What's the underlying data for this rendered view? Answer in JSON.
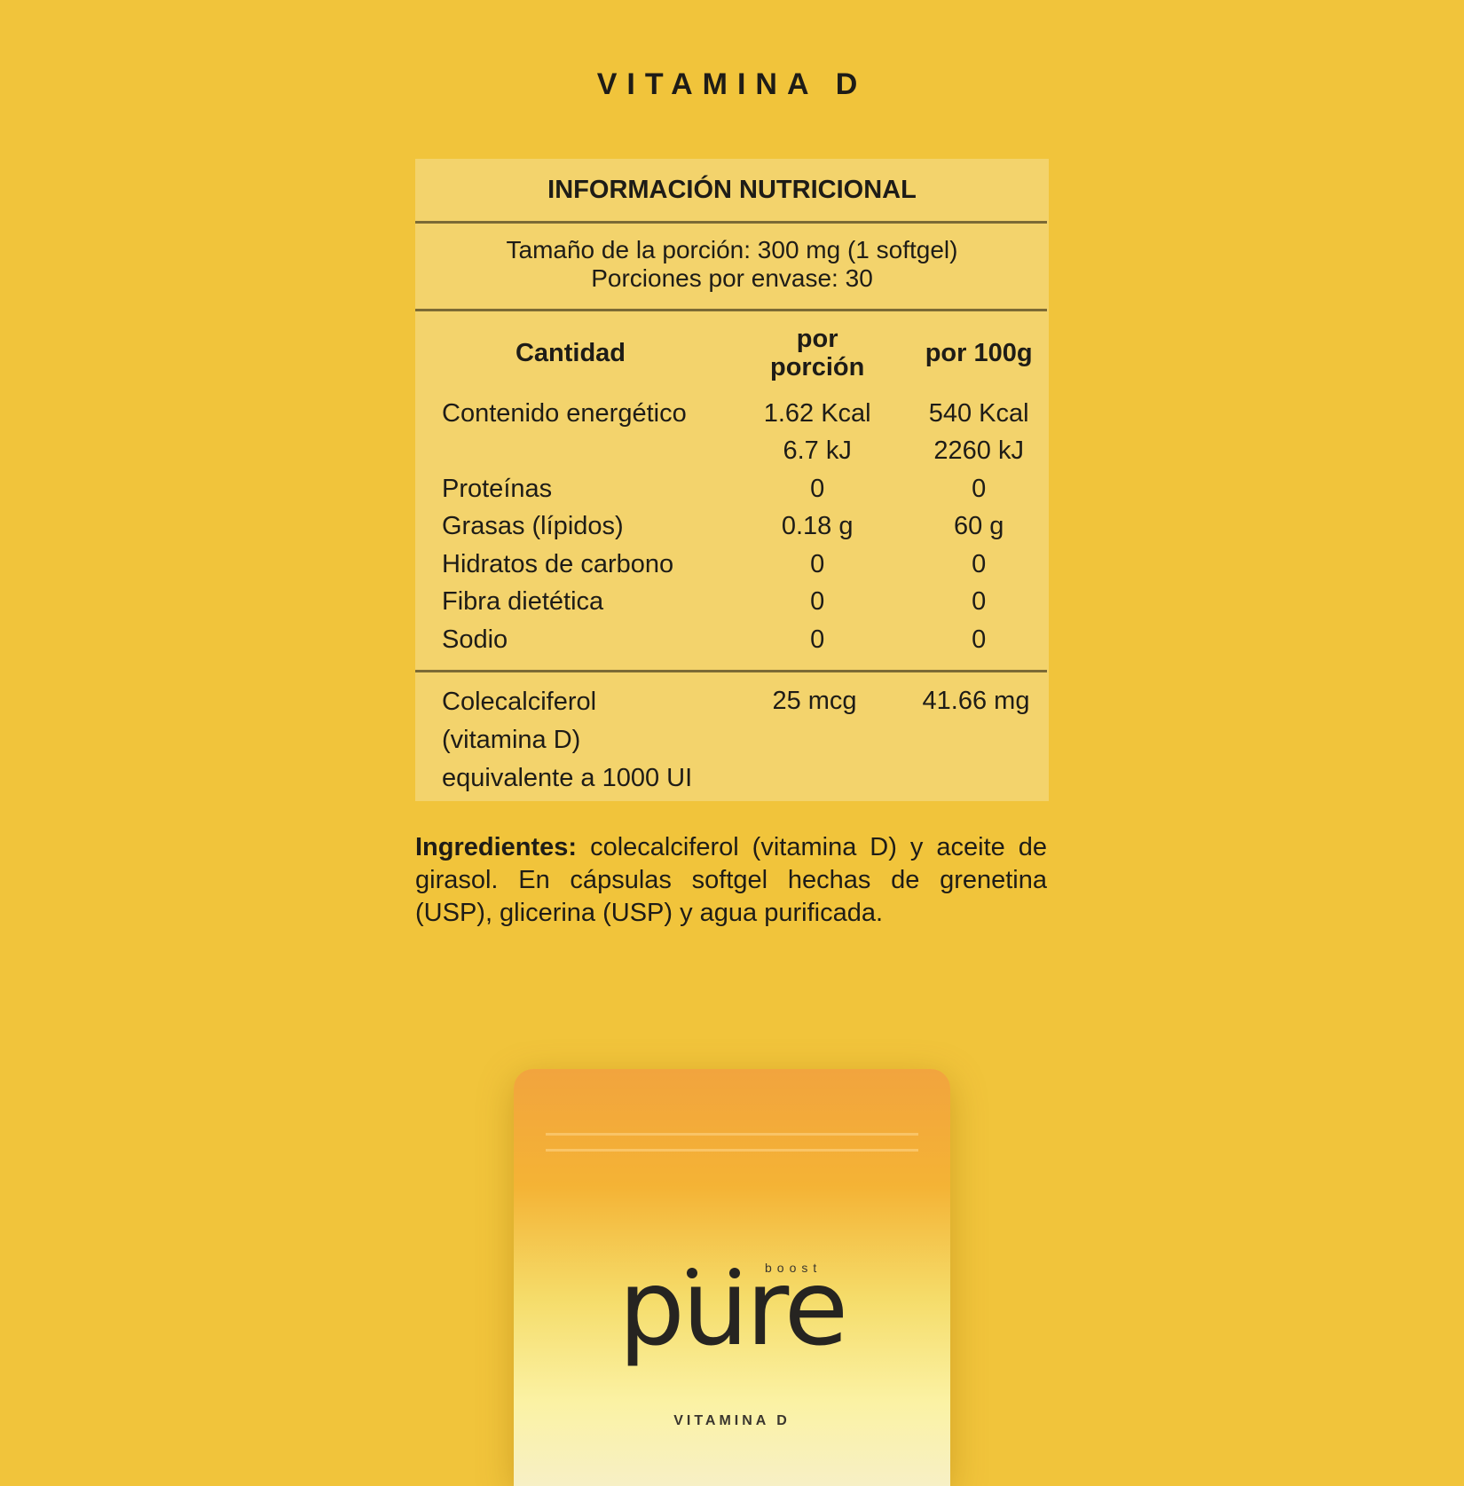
{
  "title": "VITAMINA D",
  "panel": {
    "heading": "INFORMACIÓN NUTRICIONAL",
    "serving_size": "Tamaño de la porción: 300 mg (1 softgel)",
    "servings": "Porciones por envase: 30",
    "columns": [
      "Cantidad",
      "por porción",
      "por 100g"
    ],
    "rows": [
      [
        "Contenido energético",
        "1.62 Kcal",
        "540 Kcal"
      ],
      [
        "",
        "6.7 kJ",
        "2260 kJ"
      ],
      [
        "Proteínas",
        "0",
        "0"
      ],
      [
        "Grasas (lípidos)",
        "0.18 g",
        "60 g"
      ],
      [
        "Hidratos de carbono",
        "0",
        "0"
      ],
      [
        "Fibra dietética",
        "0",
        "0"
      ],
      [
        "Sodio",
        "0",
        "0"
      ]
    ],
    "vitamin": {
      "name_lines": [
        "Colecalciferol",
        "(vitamina D)",
        "equivalente a 1000 UI"
      ],
      "per_serving": "25 mcg",
      "per_100g": "41.66 mg"
    }
  },
  "ingredients": {
    "label": "Ingredientes:",
    "text": " colecalciferol (vitamina D) y aceite de girasol. En cápsulas softgel hechas de grenetina (USP), glicerina (USP) y agua purificada."
  },
  "product": {
    "brand": "pure",
    "sub_brand": "boost",
    "product_name": "VITAMINA D"
  }
}
